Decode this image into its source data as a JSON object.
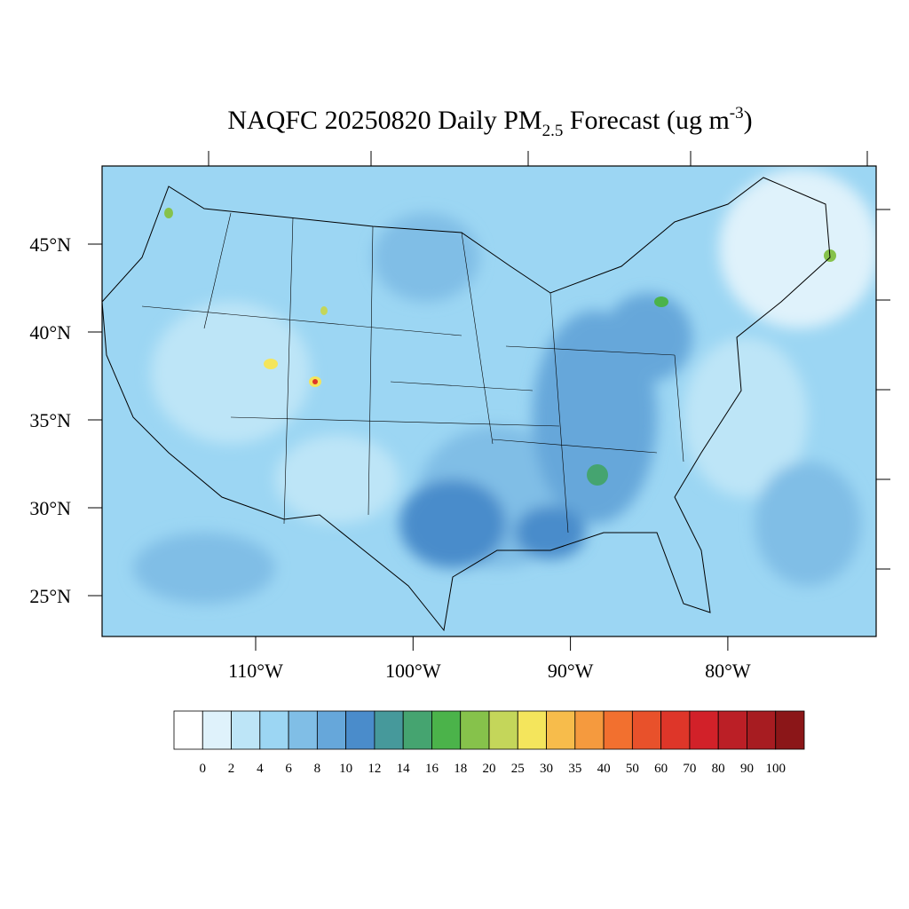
{
  "title": {
    "main": "NAQFC 20250820 Daily PM",
    "subscript": "2.5",
    "middle": " Forecast (ug m",
    "superscript": "-3",
    "end": ")"
  },
  "map": {
    "lat_labels": [
      {
        "value": 45,
        "label": "45°N"
      },
      {
        "value": 40,
        "label": "40°N"
      },
      {
        "value": 35,
        "label": "35°N"
      },
      {
        "value": 30,
        "label": "30°N"
      },
      {
        "value": 25,
        "label": "25°N"
      }
    ],
    "lon_labels": [
      {
        "value": -110,
        "label": "110°W"
      },
      {
        "value": -100,
        "label": "100°W"
      },
      {
        "value": -90,
        "label": "90°W"
      },
      {
        "value": -80,
        "label": "80°W"
      }
    ]
  },
  "colorbar": {
    "labels": [
      0,
      2,
      4,
      6,
      8,
      10,
      12,
      14,
      16,
      18,
      20,
      25,
      30,
      35,
      40,
      50,
      60,
      70,
      80,
      90,
      100
    ],
    "colors": [
      "#ffffff",
      "#dff2fb",
      "#bde5f7",
      "#9cd6f3",
      "#80bee6",
      "#66a7da",
      "#4a8ccb",
      "#46999b",
      "#45a470",
      "#4bb34a",
      "#86c24b",
      "#c4d65a",
      "#f4e55c",
      "#f7bc4b",
      "#f59a3e",
      "#f2702f",
      "#e8512b",
      "#de3629",
      "#d22129",
      "#bb1f26",
      "#a71c21",
      "#8b1618"
    ]
  }
}
